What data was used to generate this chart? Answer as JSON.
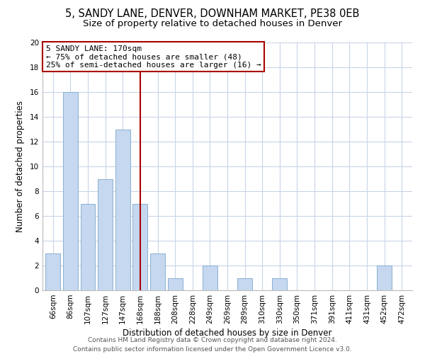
{
  "title_line1": "5, SANDY LANE, DENVER, DOWNHAM MARKET, PE38 0EB",
  "title_line2": "Size of property relative to detached houses in Denver",
  "xlabel": "Distribution of detached houses by size in Denver",
  "ylabel": "Number of detached properties",
  "categories": [
    "66sqm",
    "86sqm",
    "107sqm",
    "127sqm",
    "147sqm",
    "168sqm",
    "188sqm",
    "208sqm",
    "228sqm",
    "249sqm",
    "269sqm",
    "289sqm",
    "310sqm",
    "330sqm",
    "350sqm",
    "371sqm",
    "391sqm",
    "411sqm",
    "431sqm",
    "452sqm",
    "472sqm"
  ],
  "values": [
    3,
    16,
    7,
    9,
    13,
    7,
    3,
    1,
    0,
    2,
    0,
    1,
    0,
    1,
    0,
    0,
    0,
    0,
    0,
    2,
    0
  ],
  "bar_color": "#c5d8f0",
  "bar_edge_color": "#8ab0d0",
  "vline_x_index": 5,
  "vline_color": "#aa0000",
  "annotation_line1": "5 SANDY LANE: 170sqm",
  "annotation_line2": "← 75% of detached houses are smaller (48)",
  "annotation_line3": "25% of semi-detached houses are larger (16) →",
  "annotation_box_edge_color": "#aa0000",
  "annotation_box_face_color": "#ffffff",
  "ylim": [
    0,
    20
  ],
  "yticks": [
    0,
    2,
    4,
    6,
    8,
    10,
    12,
    14,
    16,
    18,
    20
  ],
  "grid_color": "#c8d4e8",
  "footer_line1": "Contains HM Land Registry data © Crown copyright and database right 2024.",
  "footer_line2": "Contains public sector information licensed under the Open Government Licence v3.0.",
  "background_color": "#ffffff",
  "title_fontsize": 10.5,
  "subtitle_fontsize": 9.5,
  "axis_label_fontsize": 8.5,
  "tick_fontsize": 7.5,
  "annotation_fontsize": 8,
  "footer_fontsize": 6.5
}
